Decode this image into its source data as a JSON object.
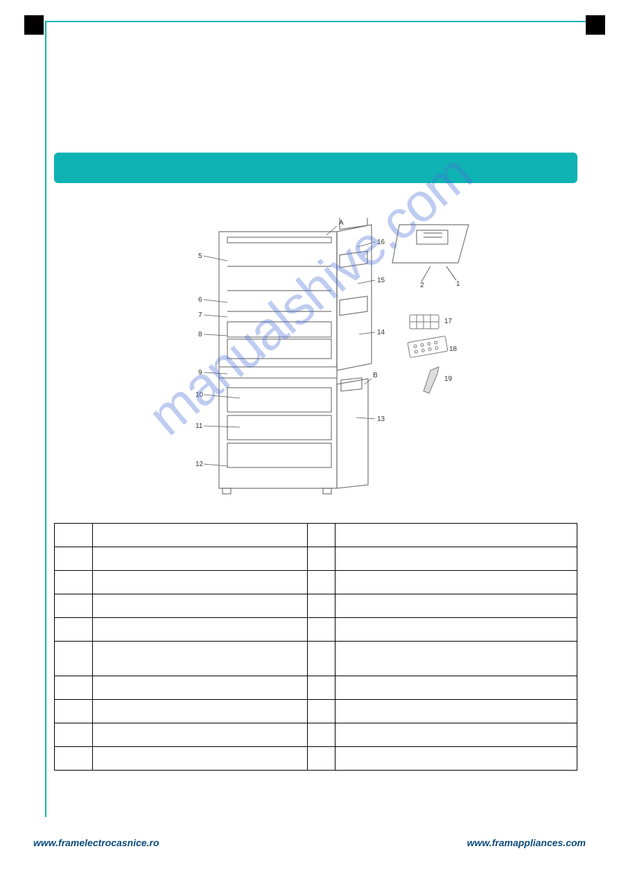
{
  "colors": {
    "accent": "#0fb3b3",
    "frame": "#0fb3b3",
    "black": "#000000",
    "watermark": "#4a6fd8",
    "footer": "#0a4a7a"
  },
  "heading": "",
  "watermark_text": "manualshive.com",
  "footer": {
    "left": "www.framelectrocasnice.ro",
    "right": "www.framappliances.com"
  },
  "diagram": {
    "labels_left": [
      "5",
      "6",
      "7",
      "8",
      "9",
      "10",
      "11",
      "12"
    ],
    "labels_right_fridge": [
      "16",
      "15",
      "14"
    ],
    "labels_right_freezer": [
      "13"
    ],
    "labels_inset": [
      "1",
      "2"
    ],
    "labels_acc": [
      "17",
      "18",
      "19"
    ],
    "letter_a": "A",
    "letter_b": "B"
  },
  "table": {
    "rows": [
      {
        "a_num": "",
        "a_desc": "",
        "b_num": "",
        "b_desc": "",
        "tall": false
      },
      {
        "a_num": "",
        "a_desc": "",
        "b_num": "",
        "b_desc": "",
        "tall": false
      },
      {
        "a_num": "",
        "a_desc": "",
        "b_num": "",
        "b_desc": "",
        "tall": false
      },
      {
        "a_num": "",
        "a_desc": "",
        "b_num": "",
        "b_desc": "",
        "tall": false
      },
      {
        "a_num": "",
        "a_desc": "",
        "b_num": "",
        "b_desc": "",
        "tall": false
      },
      {
        "a_num": "",
        "a_desc": "",
        "b_num": "",
        "b_desc": "",
        "tall": true
      },
      {
        "a_num": "",
        "a_desc": "",
        "b_num": "",
        "b_desc": "",
        "tall": false
      },
      {
        "a_num": "",
        "a_desc": "",
        "b_num": "",
        "b_desc": "",
        "tall": false
      },
      {
        "a_num": "",
        "a_desc": "",
        "b_num": "",
        "b_desc": "",
        "tall": false
      },
      {
        "a_num": "",
        "a_desc": "",
        "b_num": "",
        "b_desc": "",
        "tall": false
      }
    ]
  }
}
